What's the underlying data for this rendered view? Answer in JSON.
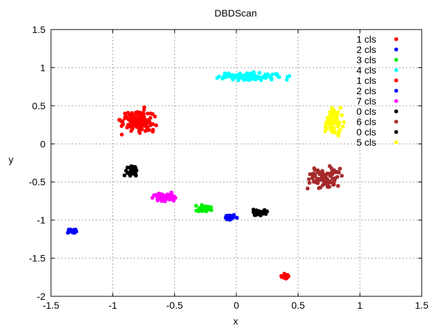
{
  "chart_data": {
    "type": "scatter",
    "title": "DBDScan",
    "xlabel": "x",
    "ylabel": "y",
    "xlim": [
      -1.5,
      1.5
    ],
    "ylim": [
      -2,
      1.5
    ],
    "x_ticks": [
      "-1.5",
      "-1",
      "-0.5",
      "0",
      "0.5",
      "1",
      "1.5"
    ],
    "y_ticks": [
      "-2",
      "-1.5",
      "-1",
      "-0.5",
      "0",
      "0.5",
      "1",
      "1.5"
    ],
    "grid": true,
    "legend_position": "top-right",
    "series": [
      {
        "name": "1 cls",
        "color": "#ff0000",
        "center": [
          0.39,
          -1.73
        ],
        "spread": [
          0.05,
          0.04
        ],
        "count": 20
      },
      {
        "name": "2 cls",
        "color": "#0000ff",
        "center": [
          -1.33,
          -1.14
        ],
        "spread": [
          0.05,
          0.04
        ],
        "count": 25
      },
      {
        "name": "3 cls",
        "color": "#00ee00",
        "center": [
          -0.26,
          -0.85
        ],
        "spread": [
          0.09,
          0.06
        ],
        "count": 40
      },
      {
        "name": "4 cls",
        "color": "#00ffff",
        "center": [
          0.1,
          0.88
        ],
        "spread": [
          0.38,
          0.07
        ],
        "count": 110
      },
      {
        "name": "1 cls",
        "color": "#ff0000",
        "center": [
          -0.8,
          0.3
        ],
        "spread": [
          0.18,
          0.22
        ],
        "count": 140
      },
      {
        "name": "2 cls",
        "color": "#0000ff",
        "center": [
          -0.05,
          -0.96
        ],
        "spread": [
          0.07,
          0.05
        ],
        "count": 20
      },
      {
        "name": "7 cls",
        "color": "#ff00ff",
        "center": [
          -0.58,
          -0.7
        ],
        "spread": [
          0.14,
          0.08
        ],
        "count": 60
      },
      {
        "name": "0 cls",
        "color": "#000000",
        "center": [
          -0.85,
          -0.35
        ],
        "spread": [
          0.07,
          0.13
        ],
        "count": 40
      },
      {
        "name": "6 cls",
        "color": "#a52a2a",
        "center": [
          0.7,
          -0.45
        ],
        "spread": [
          0.2,
          0.2
        ],
        "count": 90
      },
      {
        "name": "0 cls",
        "color": "#000000",
        "center": [
          0.18,
          -0.9
        ],
        "spread": [
          0.1,
          0.05
        ],
        "count": 30
      },
      {
        "name": "5 cls",
        "color": "#ffff00",
        "center": [
          0.78,
          0.3
        ],
        "spread": [
          0.12,
          0.22
        ],
        "count": 80
      }
    ]
  }
}
